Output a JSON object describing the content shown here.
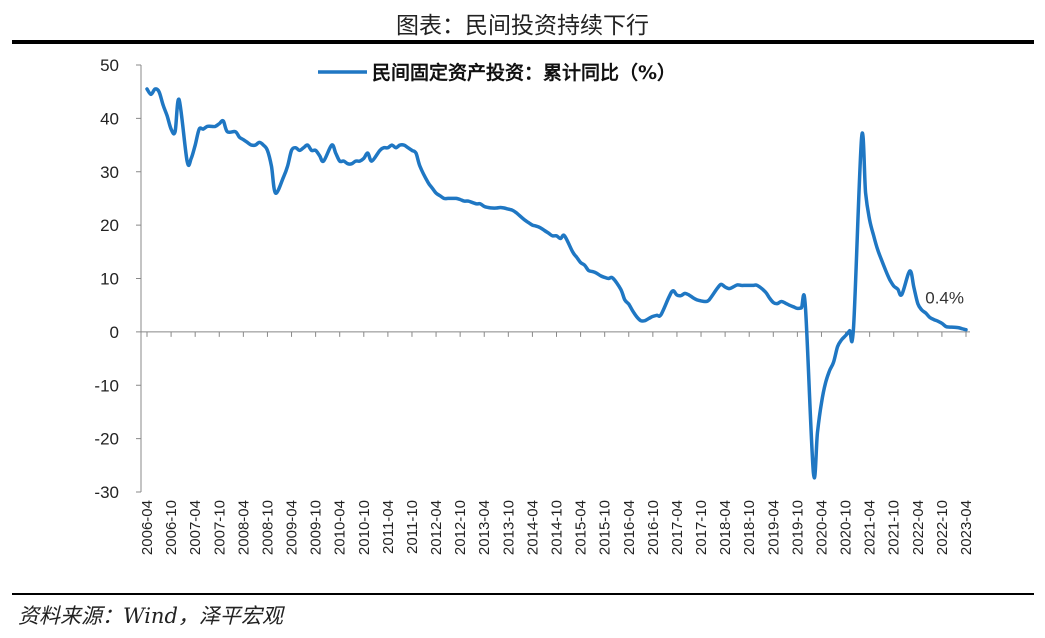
{
  "figure_title": "图表：民间投资持续下行",
  "source_note": "资料来源：Wind，泽平宏观",
  "chart_data": {
    "type": "line",
    "title": "",
    "xlabel": "",
    "ylabel": "",
    "ylim": [
      -30,
      50
    ],
    "yticks": [
      50,
      40,
      30,
      20,
      10,
      0,
      -10,
      -20,
      -30
    ],
    "x_tick_labels": [
      "2006-04",
      "2006-10",
      "2007-04",
      "2007-10",
      "2008-04",
      "2008-10",
      "2009-04",
      "2009-10",
      "2010-04",
      "2010-10",
      "2011-04",
      "2011-10",
      "2012-04",
      "2012-10",
      "2013-04",
      "2013-10",
      "2014-04",
      "2014-10",
      "2015-04",
      "2015-10",
      "2016-04",
      "2016-10",
      "2017-04",
      "2017-10",
      "2018-04",
      "2018-10",
      "2019-04",
      "2019-10",
      "2020-04",
      "2020-10",
      "2021-04",
      "2021-10",
      "2022-04",
      "2022-10",
      "2023-04"
    ],
    "grid": false,
    "legend_position": "top-center",
    "series": [
      {
        "name": "民间固定资产投资：累计同比（%）",
        "color": "#1F77C3",
        "points": [
          [
            "2006-04",
            45.5
          ],
          [
            "2006-05",
            44.5
          ],
          [
            "2006-06",
            45.5
          ],
          [
            "2006-07",
            45.0
          ],
          [
            "2006-08",
            42.5
          ],
          [
            "2006-09",
            40.5
          ],
          [
            "2006-10",
            38.0
          ],
          [
            "2006-11",
            37.5
          ],
          [
            "2006-12",
            43.5
          ],
          [
            "2007-02",
            32.0
          ],
          [
            "2007-03",
            32.5
          ],
          [
            "2007-04",
            35.0
          ],
          [
            "2007-05",
            38.0
          ],
          [
            "2007-06",
            38.0
          ],
          [
            "2007-07",
            38.5
          ],
          [
            "2007-08",
            38.5
          ],
          [
            "2007-09",
            38.5
          ],
          [
            "2007-10",
            39.0
          ],
          [
            "2007-11",
            39.5
          ],
          [
            "2007-12",
            37.5
          ],
          [
            "2008-02",
            37.5
          ],
          [
            "2008-03",
            36.5
          ],
          [
            "2008-04",
            36.0
          ],
          [
            "2008-05",
            35.5
          ],
          [
            "2008-06",
            35.0
          ],
          [
            "2008-07",
            35.0
          ],
          [
            "2008-08",
            35.5
          ],
          [
            "2008-09",
            35.0
          ],
          [
            "2008-10",
            34.0
          ],
          [
            "2008-11",
            31.0
          ],
          [
            "2008-12",
            26.0
          ],
          [
            "2009-02",
            29.0
          ],
          [
            "2009-03",
            31.0
          ],
          [
            "2009-04",
            34.0
          ],
          [
            "2009-05",
            34.5
          ],
          [
            "2009-06",
            34.0
          ],
          [
            "2009-07",
            34.5
          ],
          [
            "2009-08",
            35.0
          ],
          [
            "2009-09",
            34.0
          ],
          [
            "2009-10",
            34.0
          ],
          [
            "2009-11",
            33.0
          ],
          [
            "2009-12",
            32.0
          ],
          [
            "2010-02",
            35.0
          ],
          [
            "2010-03",
            33.5
          ],
          [
            "2010-04",
            32.0
          ],
          [
            "2010-05",
            32.0
          ],
          [
            "2010-06",
            31.5
          ],
          [
            "2010-07",
            31.5
          ],
          [
            "2010-08",
            32.0
          ],
          [
            "2010-09",
            32.0
          ],
          [
            "2010-10",
            32.5
          ],
          [
            "2010-11",
            33.5
          ],
          [
            "2010-12",
            32.0
          ],
          [
            "2011-02",
            34.0
          ],
          [
            "2011-03",
            34.5
          ],
          [
            "2011-04",
            34.5
          ],
          [
            "2011-05",
            35.0
          ],
          [
            "2011-06",
            34.5
          ],
          [
            "2011-07",
            35.0
          ],
          [
            "2011-08",
            35.0
          ],
          [
            "2011-09",
            34.5
          ],
          [
            "2011-10",
            34.0
          ],
          [
            "2011-11",
            33.5
          ],
          [
            "2011-12",
            31.0
          ],
          [
            "2012-02",
            28.0
          ],
          [
            "2012-03",
            27.0
          ],
          [
            "2012-04",
            26.0
          ],
          [
            "2012-05",
            25.5
          ],
          [
            "2012-06",
            25.0
          ],
          [
            "2012-07",
            25.0
          ],
          [
            "2012-08",
            25.0
          ],
          [
            "2012-09",
            25.0
          ],
          [
            "2012-10",
            24.8
          ],
          [
            "2012-11",
            24.5
          ],
          [
            "2012-12",
            24.5
          ],
          [
            "2013-02",
            24.0
          ],
          [
            "2013-03",
            24.0
          ],
          [
            "2013-04",
            23.5
          ],
          [
            "2013-05",
            23.3
          ],
          [
            "2013-06",
            23.2
          ],
          [
            "2013-07",
            23.2
          ],
          [
            "2013-08",
            23.3
          ],
          [
            "2013-09",
            23.2
          ],
          [
            "2013-10",
            23.0
          ],
          [
            "2013-11",
            22.8
          ],
          [
            "2013-12",
            22.3
          ],
          [
            "2014-02",
            21.0
          ],
          [
            "2014-03",
            20.5
          ],
          [
            "2014-04",
            20.0
          ],
          [
            "2014-05",
            19.8
          ],
          [
            "2014-06",
            19.5
          ],
          [
            "2014-07",
            19.0
          ],
          [
            "2014-08",
            18.5
          ],
          [
            "2014-09",
            18.0
          ],
          [
            "2014-10",
            18.0
          ],
          [
            "2014-11",
            17.5
          ],
          [
            "2014-12",
            18.0
          ],
          [
            "2015-02",
            15.0
          ],
          [
            "2015-03",
            14.0
          ],
          [
            "2015-04",
            13.0
          ],
          [
            "2015-05",
            12.5
          ],
          [
            "2015-06",
            11.5
          ],
          [
            "2015-07",
            11.3
          ],
          [
            "2015-08",
            11.0
          ],
          [
            "2015-09",
            10.5
          ],
          [
            "2015-10",
            10.2
          ],
          [
            "2015-11",
            10.0
          ],
          [
            "2015-12",
            10.1
          ],
          [
            "2016-02",
            8.0
          ],
          [
            "2016-03",
            6.0
          ],
          [
            "2016-04",
            5.2
          ],
          [
            "2016-05",
            3.9
          ],
          [
            "2016-06",
            2.8
          ],
          [
            "2016-07",
            2.1
          ],
          [
            "2016-08",
            2.1
          ],
          [
            "2016-09",
            2.5
          ],
          [
            "2016-10",
            2.9
          ],
          [
            "2016-11",
            3.1
          ],
          [
            "2016-12",
            3.2
          ],
          [
            "2017-02",
            6.5
          ],
          [
            "2017-03",
            7.7
          ],
          [
            "2017-04",
            6.9
          ],
          [
            "2017-05",
            6.8
          ],
          [
            "2017-06",
            7.2
          ],
          [
            "2017-07",
            6.9
          ],
          [
            "2017-08",
            6.4
          ],
          [
            "2017-09",
            6.0
          ],
          [
            "2017-10",
            5.8
          ],
          [
            "2017-11",
            5.7
          ],
          [
            "2017-12",
            6.0
          ],
          [
            "2018-02",
            8.1
          ],
          [
            "2018-03",
            8.9
          ],
          [
            "2018-04",
            8.4
          ],
          [
            "2018-05",
            8.1
          ],
          [
            "2018-06",
            8.4
          ],
          [
            "2018-07",
            8.8
          ],
          [
            "2018-08",
            8.7
          ],
          [
            "2018-09",
            8.7
          ],
          [
            "2018-10",
            8.7
          ],
          [
            "2018-11",
            8.7
          ],
          [
            "2018-12",
            8.7
          ],
          [
            "2019-02",
            7.5
          ],
          [
            "2019-03",
            6.4
          ],
          [
            "2019-04",
            5.5
          ],
          [
            "2019-05",
            5.3
          ],
          [
            "2019-06",
            5.7
          ],
          [
            "2019-07",
            5.4
          ],
          [
            "2019-08",
            5.0
          ],
          [
            "2019-09",
            4.7
          ],
          [
            "2019-10",
            4.4
          ],
          [
            "2019-11",
            4.5
          ],
          [
            "2019-12",
            4.7
          ],
          [
            "2020-02",
            -26.4
          ],
          [
            "2020-03",
            -18.8
          ],
          [
            "2020-04",
            -13.3
          ],
          [
            "2020-05",
            -9.6
          ],
          [
            "2020-06",
            -7.3
          ],
          [
            "2020-07",
            -5.7
          ],
          [
            "2020-08",
            -2.8
          ],
          [
            "2020-09",
            -1.5
          ],
          [
            "2020-10",
            -0.7
          ],
          [
            "2020-11",
            0.2
          ],
          [
            "2020-12",
            1.0
          ],
          [
            "2021-02",
            36.4
          ],
          [
            "2021-03",
            26.0
          ],
          [
            "2021-04",
            21.0
          ],
          [
            "2021-05",
            18.0
          ],
          [
            "2021-06",
            15.4
          ],
          [
            "2021-07",
            13.4
          ],
          [
            "2021-08",
            11.5
          ],
          [
            "2021-09",
            9.8
          ],
          [
            "2021-10",
            8.6
          ],
          [
            "2021-11",
            8.0
          ],
          [
            "2021-12",
            7.0
          ],
          [
            "2022-02",
            11.4
          ],
          [
            "2022-03",
            8.4
          ],
          [
            "2022-04",
            5.3
          ],
          [
            "2022-05",
            4.1
          ],
          [
            "2022-06",
            3.5
          ],
          [
            "2022-07",
            2.7
          ],
          [
            "2022-08",
            2.3
          ],
          [
            "2022-09",
            2.0
          ],
          [
            "2022-10",
            1.6
          ],
          [
            "2022-11",
            1.0
          ],
          [
            "2022-12",
            0.9
          ],
          [
            "2023-02",
            0.8
          ],
          [
            "2023-03",
            0.6
          ],
          [
            "2023-04",
            0.4
          ]
        ]
      }
    ],
    "annotations": [
      {
        "text": "0.4%",
        "x": "2023-04",
        "y": 0.4
      }
    ]
  }
}
